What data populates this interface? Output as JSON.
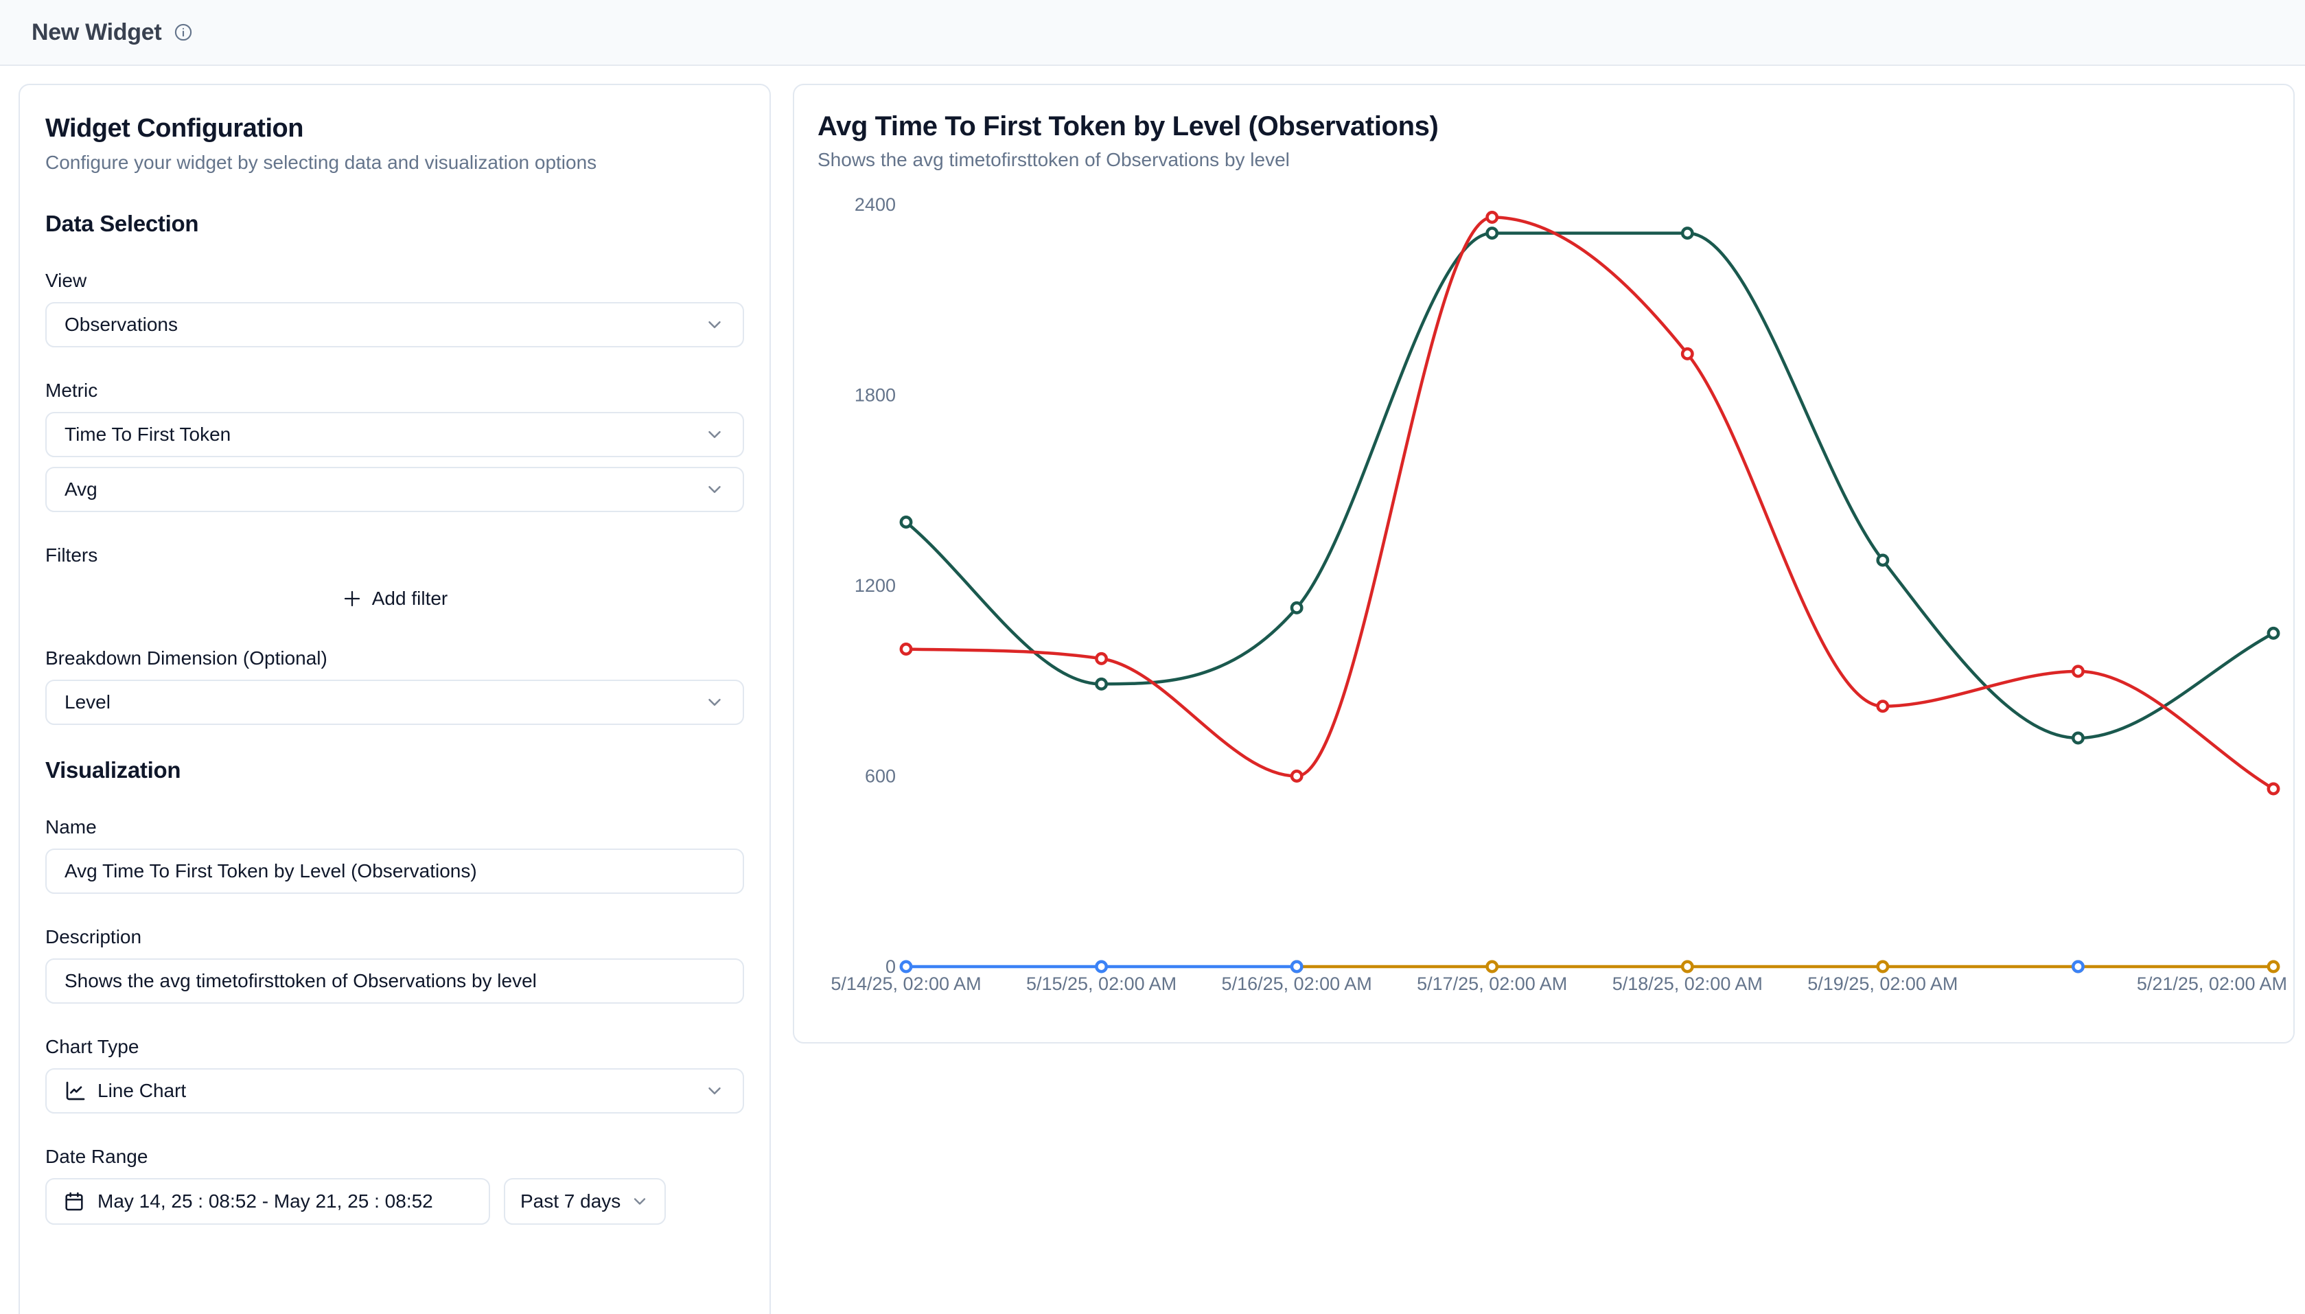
{
  "header": {
    "title": "New Widget"
  },
  "config_panel": {
    "title": "Widget Configuration",
    "subtitle": "Configure your widget by selecting data and visualization options",
    "data_selection": {
      "heading": "Data Selection",
      "view_label": "View",
      "view_value": "Observations",
      "metric_label": "Metric",
      "metric_value": "Time To First Token",
      "aggregation_value": "Avg",
      "filters_label": "Filters",
      "add_filter_label": "Add filter",
      "breakdown_label": "Breakdown Dimension (Optional)",
      "breakdown_value": "Level"
    },
    "visualization": {
      "heading": "Visualization",
      "name_label": "Name",
      "name_value": "Avg Time To First Token by Level (Observations)",
      "description_label": "Description",
      "description_value": "Shows the avg timetofirsttoken of Observations by level",
      "chart_type_label": "Chart Type",
      "chart_type_value": "Line Chart",
      "date_range_label": "Date Range",
      "date_range_value": "May 14, 25 : 08:52 - May 21, 25 : 08:52",
      "date_preset_value": "Past 7 days"
    }
  },
  "chart_panel": {
    "title": "Avg Time To First Token by Level (Observations)",
    "subtitle": "Shows the avg timetofirsttoken of Observations by level"
  },
  "chart_data": {
    "type": "line",
    "title": "Avg Time To First Token by Level (Observations)",
    "xlabel": "",
    "ylabel": "",
    "ylim": [
      0,
      2400
    ],
    "y_ticks": [
      0,
      600,
      1200,
      1800,
      2400
    ],
    "grid": false,
    "legend_position": "none",
    "num_points": 8,
    "x_labels": [
      {
        "index": 0,
        "text": "5/14/25, 02:00 AM"
      },
      {
        "index": 1,
        "text": "5/15/25, 02:00 AM"
      },
      {
        "index": 2,
        "text": "5/16/25, 02:00 AM"
      },
      {
        "index": 3,
        "text": "5/17/25, 02:00 AM"
      },
      {
        "index": 4,
        "text": "5/18/25, 02:00 AM"
      },
      {
        "index": 5,
        "text": "5/19/25, 02:00 AM"
      },
      {
        "index": 7,
        "text": "5/21/25, 02:00 AM"
      }
    ],
    "axis_text_color": "#64748b",
    "series": [
      {
        "name": "series-teal",
        "color": "#1a594e",
        "values": [
          1400,
          890,
          1130,
          2310,
          2310,
          1280,
          720,
          1050
        ]
      },
      {
        "name": "series-red",
        "color": "#dc2626",
        "values": [
          1000,
          970,
          600,
          2360,
          1930,
          820,
          930,
          560
        ]
      },
      {
        "name": "series-orange",
        "color": "#ca8a04",
        "values": [
          null,
          null,
          0,
          0,
          0,
          0,
          0,
          0
        ]
      },
      {
        "name": "series-blue",
        "color": "#3b82f6",
        "values": [
          0,
          0,
          0,
          null,
          null,
          null,
          0,
          null
        ]
      }
    ]
  }
}
